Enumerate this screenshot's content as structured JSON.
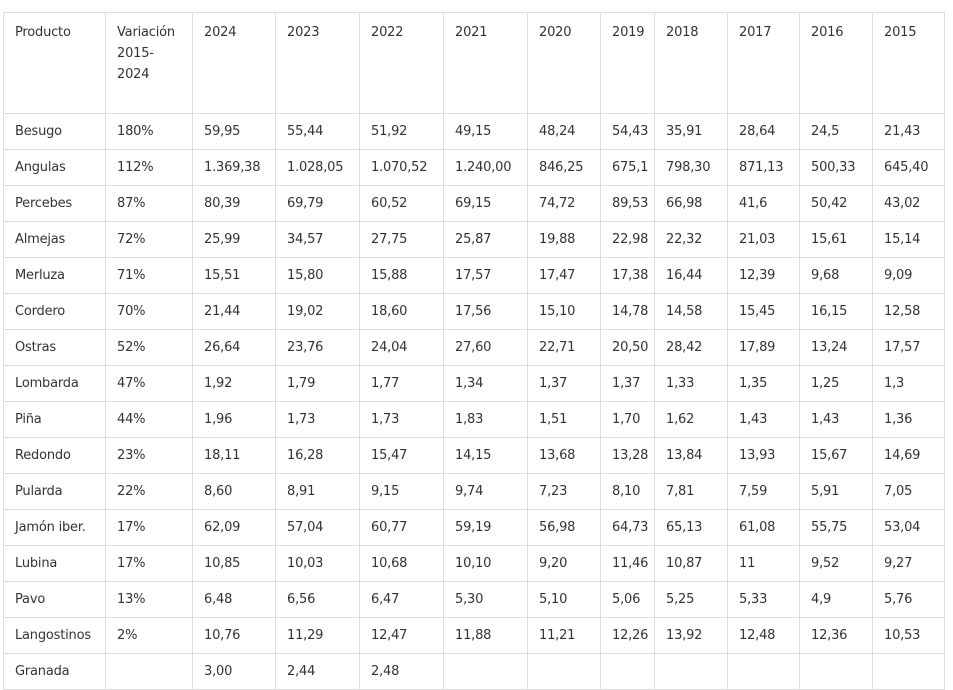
{
  "table": {
    "headers": [
      "Producto",
      "Variación 2015-2024",
      "2024",
      "2023",
      "2022",
      "2021",
      "2020",
      "2019",
      "2018",
      "2017",
      "2016",
      "2015"
    ],
    "header_variation_lines": [
      "Variación",
      "2015-",
      "2024"
    ],
    "rows": [
      [
        "Besugo",
        "180%",
        "59,95",
        "55,44",
        "51,92",
        "49,15",
        "48,24",
        "54,43",
        "35,91",
        "28,64",
        "24,5",
        "21,43"
      ],
      [
        "Angulas",
        "112%",
        "1.369,38",
        "1.028,05",
        "1.070,52",
        "1.240,00",
        "846,25",
        "675,1",
        "798,30",
        "871,13",
        "500,33",
        "645,40"
      ],
      [
        "Percebes",
        "87%",
        "80,39",
        "69,79",
        "60,52",
        "69,15",
        "74,72",
        "89,53",
        "66,98",
        "41,6",
        "50,42",
        "43,02"
      ],
      [
        "Almejas",
        "72%",
        "25,99",
        "34,57",
        "27,75",
        "25,87",
        "19,88",
        "22,98",
        "22,32",
        "21,03",
        "15,61",
        "15,14"
      ],
      [
        "Merluza",
        "71%",
        "15,51",
        "15,80",
        "15,88",
        "17,57",
        "17,47",
        "17,38",
        "16,44",
        "12,39",
        "9,68",
        "9,09"
      ],
      [
        "Cordero",
        "70%",
        "21,44",
        "19,02",
        "18,60",
        "17,56",
        "15,10",
        "14,78",
        "14,58",
        "15,45",
        "16,15",
        "12,58"
      ],
      [
        "Ostras",
        "52%",
        "26,64",
        "23,76",
        "24,04",
        "27,60",
        "22,71",
        "20,50",
        "28,42",
        "17,89",
        "13,24",
        "17,57"
      ],
      [
        "Lombarda",
        "47%",
        "1,92",
        "1,79",
        "1,77",
        "1,34",
        "1,37",
        "1,37",
        "1,33",
        "1,35",
        "1,25",
        "1,3"
      ],
      [
        "Piña",
        "44%",
        "1,96",
        "1,73",
        "1,73",
        "1,83",
        "1,51",
        "1,70",
        "1,62",
        "1,43",
        "1,43",
        "1,36"
      ],
      [
        "Redondo",
        "23%",
        "18,11",
        "16,28",
        "15,47",
        "14,15",
        "13,68",
        "13,28",
        "13,84",
        "13,93",
        "15,67",
        "14,69"
      ],
      [
        "Pularda",
        "22%",
        "8,60",
        "8,91",
        "9,15",
        "9,74",
        "7,23",
        "8,10",
        "7,81",
        "7,59",
        "5,91",
        "7,05"
      ],
      [
        "Jamón iber.",
        "17%",
        "62,09",
        "57,04",
        "60,77",
        "59,19",
        "56,98",
        "64,73",
        "65,13",
        "61,08",
        "55,75",
        "53,04"
      ],
      [
        "Lubina",
        "17%",
        "10,85",
        "10,03",
        "10,68",
        "10,10",
        "9,20",
        "11,46",
        "10,87",
        "11",
        "9,52",
        "9,27"
      ],
      [
        "Pavo",
        "13%",
        "6,48",
        "6,56",
        "6,47",
        "5,30",
        "5,10",
        "5,06",
        "5,25",
        "5,33",
        "4,9",
        "5,76"
      ],
      [
        "Langostinos",
        "2%",
        "10,76",
        "11,29",
        "12,47",
        "11,88",
        "11,21",
        "12,26",
        "13,92",
        "12,48",
        "12,36",
        "10,53"
      ],
      [
        "Granada",
        "",
        "3,00",
        "2,44",
        "2,48",
        "",
        "",
        "",
        "",
        "",
        "",
        ""
      ]
    ]
  }
}
